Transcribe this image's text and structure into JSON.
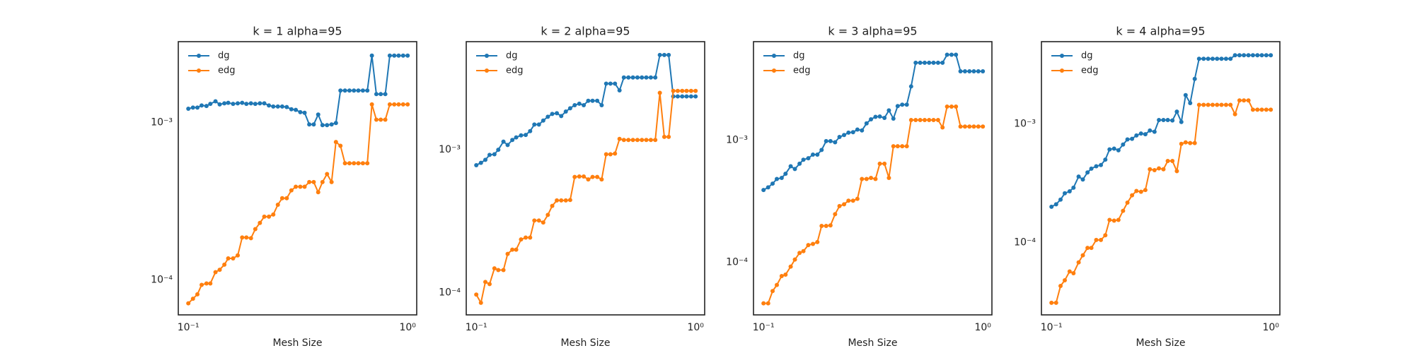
{
  "chart_data": [
    {
      "type": "line",
      "title": "k = 1 alpha=95",
      "x_label": "Mesh Size",
      "log_x": true,
      "log_y": true,
      "grid": false,
      "legend": "upper left",
      "marker": "o",
      "xlim": [
        0.09,
        1.1
      ],
      "ylim": [
        6e-05,
        0.00325
      ],
      "xticks": [
        {
          "value": 0.1,
          "label": "10⁻¹"
        },
        {
          "value": 1,
          "label": "10⁰"
        }
      ],
      "yticks": [
        {
          "value": 0.0001,
          "label": "10⁻⁴"
        },
        {
          "value": 0.001,
          "label": "10⁻³"
        }
      ],
      "x": [
        0.1,
        0.105,
        0.11,
        0.115,
        0.121,
        0.126,
        0.133,
        0.139,
        0.146,
        0.152,
        0.16,
        0.168,
        0.176,
        0.184,
        0.193,
        0.202,
        0.212,
        0.222,
        0.233,
        0.244,
        0.256,
        0.268,
        0.281,
        0.295,
        0.309,
        0.324,
        0.339,
        0.356,
        0.373,
        0.391,
        0.409,
        0.429,
        0.45,
        0.471,
        0.494,
        0.518,
        0.543,
        0.569,
        0.596,
        0.625,
        0.655,
        0.687,
        0.72,
        0.754,
        0.791,
        0.829,
        0.869,
        0.91,
        0.954,
        1.0
      ],
      "series": [
        {
          "name": "dg",
          "color": "#1f77b4",
          "values": [
            0.00122,
            0.00124,
            0.00124,
            0.00128,
            0.00127,
            0.00131,
            0.00136,
            0.0013,
            0.00132,
            0.00133,
            0.00131,
            0.00132,
            0.00133,
            0.00131,
            0.00132,
            0.00131,
            0.00132,
            0.00132,
            0.00128,
            0.00126,
            0.00126,
            0.00126,
            0.00125,
            0.00121,
            0.0012,
            0.00116,
            0.00115,
            0.00097,
            0.00097,
            0.00112,
            0.00096,
            0.00096,
            0.00097,
            0.00099,
            0.00159,
            0.00159,
            0.00159,
            0.00159,
            0.00159,
            0.00159,
            0.00159,
            0.00265,
            0.00151,
            0.00151,
            0.00151,
            0.00265,
            0.00265,
            0.00265,
            0.00265,
            0.00265
          ]
        },
        {
          "name": "edg",
          "color": "#ff7f0e",
          "values": [
            7.1e-05,
            7.6e-05,
            8.1e-05,
            9.3e-05,
            9.5e-05,
            9.5e-05,
            0.000112,
            0.000116,
            0.000125,
            0.000137,
            0.000137,
            0.000143,
            0.000186,
            0.000186,
            0.000184,
            0.00021,
            0.00023,
            0.000252,
            0.000252,
            0.00026,
            0.0003,
            0.00033,
            0.00033,
            0.00037,
            0.00039,
            0.00039,
            0.00039,
            0.000418,
            0.000418,
            0.00036,
            0.000418,
            0.00047,
            0.000418,
            0.00075,
            0.00071,
            0.00055,
            0.00055,
            0.00055,
            0.00055,
            0.00055,
            0.00055,
            0.0013,
            0.00104,
            0.00104,
            0.00104,
            0.0013,
            0.0013,
            0.0013,
            0.0013,
            0.0013
          ]
        }
      ]
    },
    {
      "type": "line",
      "title": "k = 2 alpha=95",
      "x_label": "Mesh Size",
      "log_x": true,
      "log_y": true,
      "grid": false,
      "legend": "upper left",
      "marker": "o",
      "xlim": [
        0.09,
        1.1
      ],
      "ylim": [
        7e-05,
        0.0057
      ],
      "xticks": [
        {
          "value": 0.1,
          "label": "10⁻¹"
        },
        {
          "value": 1,
          "label": "10⁰"
        }
      ],
      "yticks": [
        {
          "value": 0.0001,
          "label": "10⁻⁴"
        },
        {
          "value": 0.001,
          "label": "10⁻³"
        }
      ],
      "x": [
        0.1,
        0.105,
        0.11,
        0.115,
        0.121,
        0.126,
        0.133,
        0.139,
        0.146,
        0.152,
        0.16,
        0.168,
        0.176,
        0.184,
        0.193,
        0.202,
        0.212,
        0.222,
        0.233,
        0.244,
        0.256,
        0.268,
        0.281,
        0.295,
        0.309,
        0.324,
        0.339,
        0.356,
        0.373,
        0.391,
        0.409,
        0.429,
        0.45,
        0.471,
        0.494,
        0.518,
        0.543,
        0.569,
        0.596,
        0.625,
        0.655,
        0.687,
        0.72,
        0.754,
        0.791,
        0.829,
        0.869,
        0.91,
        0.954,
        1.0
      ],
      "series": [
        {
          "name": "dg",
          "color": "#1f77b4",
          "values": [
            0.00078,
            0.00081,
            0.00085,
            0.00092,
            0.00093,
            0.001,
            0.00114,
            0.00108,
            0.00117,
            0.00122,
            0.00126,
            0.00127,
            0.00135,
            0.0015,
            0.0015,
            0.0016,
            0.0017,
            0.00178,
            0.0018,
            0.00172,
            0.00185,
            0.00195,
            0.00205,
            0.0021,
            0.00205,
            0.0022,
            0.0022,
            0.0022,
            0.00205,
            0.0029,
            0.0029,
            0.0029,
            0.0026,
            0.0032,
            0.0032,
            0.0032,
            0.0032,
            0.0032,
            0.0032,
            0.0032,
            0.0032,
            0.0046,
            0.0046,
            0.0046,
            0.00236,
            0.00236,
            0.00236,
            0.00236,
            0.00236,
            0.00236
          ]
        },
        {
          "name": "edg",
          "color": "#ff7f0e",
          "values": [
            9.7e-05,
            8.5e-05,
            0.000119,
            0.000115,
            0.000148,
            0.000144,
            0.000144,
            0.000187,
            0.0002,
            0.0002,
            0.000236,
            0.000243,
            0.000243,
            0.00032,
            0.00032,
            0.00031,
            0.00035,
            0.000405,
            0.000442,
            0.000442,
            0.000442,
            0.000445,
            0.000645,
            0.00065,
            0.00065,
            0.00062,
            0.000645,
            0.000645,
            0.00062,
            0.00093,
            0.00093,
            0.00094,
            0.00119,
            0.00117,
            0.00117,
            0.00117,
            0.00117,
            0.00117,
            0.00117,
            0.00117,
            0.00117,
            0.0025,
            0.00123,
            0.00123,
            0.00258,
            0.00258,
            0.00258,
            0.00258,
            0.00258,
            0.00258
          ]
        }
      ]
    },
    {
      "type": "line",
      "title": "k = 3 alpha=95",
      "x_label": "Mesh Size",
      "log_x": true,
      "log_y": true,
      "grid": false,
      "legend": "upper left",
      "marker": "o",
      "xlim": [
        0.09,
        1.1
      ],
      "ylim": [
        3.7e-05,
        0.0064
      ],
      "xticks": [
        {
          "value": 0.1,
          "label": "10⁻¹"
        },
        {
          "value": 1,
          "label": "10⁰"
        }
      ],
      "yticks": [
        {
          "value": 0.0001,
          "label": "10⁻⁴"
        },
        {
          "value": 0.001,
          "label": "10⁻³"
        }
      ],
      "x": [
        0.1,
        0.105,
        0.11,
        0.115,
        0.121,
        0.126,
        0.133,
        0.139,
        0.146,
        0.152,
        0.16,
        0.168,
        0.176,
        0.184,
        0.193,
        0.202,
        0.212,
        0.222,
        0.233,
        0.244,
        0.256,
        0.268,
        0.281,
        0.295,
        0.309,
        0.324,
        0.339,
        0.356,
        0.373,
        0.391,
        0.409,
        0.429,
        0.45,
        0.471,
        0.494,
        0.518,
        0.543,
        0.569,
        0.596,
        0.625,
        0.655,
        0.687,
        0.72,
        0.754,
        0.791,
        0.829,
        0.869,
        0.91,
        0.954,
        1.0
      ],
      "series": [
        {
          "name": "dg",
          "color": "#1f77b4",
          "values": [
            0.00039,
            0.00041,
            0.00044,
            0.00048,
            0.00049,
            0.00053,
            0.00061,
            0.00058,
            0.00064,
            0.00069,
            0.00071,
            0.00076,
            0.00076,
            0.00083,
            0.00098,
            0.00098,
            0.00096,
            0.00106,
            0.0011,
            0.00115,
            0.00116,
            0.00122,
            0.0012,
            0.00137,
            0.00148,
            0.00155,
            0.00156,
            0.00152,
            0.00175,
            0.0015,
            0.0019,
            0.00195,
            0.00195,
            0.00275,
            0.0043,
            0.0043,
            0.0043,
            0.0043,
            0.0043,
            0.0043,
            0.0043,
            0.005,
            0.005,
            0.005,
            0.00366,
            0.00366,
            0.00366,
            0.00366,
            0.00366,
            0.00366
          ]
        },
        {
          "name": "edg",
          "color": "#ff7f0e",
          "values": [
            4.6e-05,
            4.6e-05,
            5.8e-05,
            6.5e-05,
            7.7e-05,
            7.9e-05,
            9.2e-05,
            0.000105,
            0.000119,
            0.000123,
            0.000138,
            0.000141,
            0.000146,
            0.000198,
            0.000198,
            0.0002,
            0.000247,
            0.000288,
            0.000298,
            0.000319,
            0.000319,
            0.00033,
            0.00048,
            0.00048,
            0.00049,
            0.00048,
            0.00064,
            0.00064,
            0.00049,
            0.00089,
            0.00089,
            0.00089,
            0.00089,
            0.00146,
            0.00146,
            0.00146,
            0.00146,
            0.00146,
            0.00146,
            0.00146,
            0.00127,
            0.00188,
            0.00188,
            0.00188,
            0.00129,
            0.00129,
            0.00129,
            0.00129,
            0.00129,
            0.00129
          ]
        }
      ]
    },
    {
      "type": "line",
      "title": "k = 4 alpha=95",
      "x_label": "Mesh Size",
      "log_x": true,
      "log_y": true,
      "grid": false,
      "legend": "upper left",
      "marker": "o",
      "xlim": [
        0.09,
        1.1
      ],
      "ylim": [
        2.45e-05,
        0.00495
      ],
      "xticks": [
        {
          "value": 0.1,
          "label": "10⁻¹"
        },
        {
          "value": 1,
          "label": "10⁰"
        }
      ],
      "yticks": [
        {
          "value": 0.0001,
          "label": "10⁻⁴"
        },
        {
          "value": 0.001,
          "label": "10⁻³"
        }
      ],
      "x": [
        0.1,
        0.105,
        0.11,
        0.115,
        0.121,
        0.126,
        0.133,
        0.139,
        0.146,
        0.152,
        0.16,
        0.168,
        0.176,
        0.184,
        0.193,
        0.202,
        0.212,
        0.222,
        0.233,
        0.244,
        0.256,
        0.268,
        0.281,
        0.295,
        0.309,
        0.324,
        0.339,
        0.356,
        0.373,
        0.391,
        0.409,
        0.429,
        0.45,
        0.471,
        0.494,
        0.518,
        0.543,
        0.569,
        0.596,
        0.625,
        0.655,
        0.687,
        0.72,
        0.754,
        0.791,
        0.829,
        0.869,
        0.91,
        0.954,
        1.0
      ],
      "series": [
        {
          "name": "dg",
          "color": "#1f77b4",
          "values": [
            0.0002,
            0.00021,
            0.00023,
            0.00026,
            0.00027,
            0.00029,
            0.00036,
            0.00034,
            0.00039,
            0.00042,
            0.00044,
            0.00045,
            0.0005,
            0.00061,
            0.00062,
            0.0006,
            0.00067,
            0.00074,
            0.00075,
            0.0008,
            0.00083,
            0.00082,
            0.00088,
            0.00086,
            0.00108,
            0.00108,
            0.00108,
            0.00107,
            0.00127,
            0.00104,
            0.00175,
            0.0015,
            0.0024,
            0.00355,
            0.00355,
            0.00355,
            0.00355,
            0.00355,
            0.00355,
            0.00355,
            0.00355,
            0.0038,
            0.0038,
            0.0038,
            0.0038,
            0.0038,
            0.0038,
            0.0038,
            0.0038,
            0.0038
          ]
        },
        {
          "name": "edg",
          "color": "#ff7f0e",
          "values": [
            3.1e-05,
            3.1e-05,
            4.3e-05,
            4.8e-05,
            5.7e-05,
            5.5e-05,
            6.8e-05,
            7.8e-05,
            9e-05,
            9e-05,
            0.000105,
            0.000105,
            0.000115,
            0.000155,
            0.000153,
            0.000155,
            0.000185,
            0.000217,
            0.00025,
            0.000272,
            0.000268,
            0.000277,
            0.000415,
            0.000408,
            0.000422,
            0.000415,
            0.000487,
            0.000487,
            0.0004,
            0.00068,
            0.0007,
            0.00069,
            0.00069,
            0.00145,
            0.00145,
            0.00145,
            0.00145,
            0.00145,
            0.00145,
            0.00145,
            0.00145,
            0.00121,
            0.00158,
            0.00158,
            0.00158,
            0.00132,
            0.00132,
            0.00132,
            0.00132,
            0.00132
          ]
        }
      ]
    }
  ]
}
